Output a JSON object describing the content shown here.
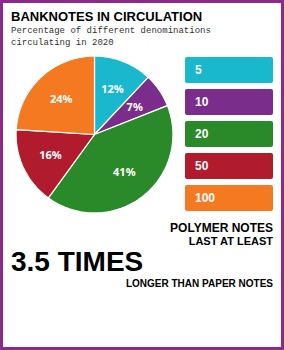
{
  "chart_data": {
    "type": "pie",
    "title": "BANKNOTES IN CIRCULATION",
    "subtitle": "Percentage of different denominations\ncirculating in 2020",
    "categories": [
      "5",
      "10",
      "20",
      "50",
      "100"
    ],
    "values": [
      12,
      7,
      41,
      16,
      24
    ],
    "value_labels": [
      "12%",
      "7%",
      "41%",
      "16%",
      "24%"
    ],
    "colors": [
      "#1ab8cc",
      "#7b2d8b",
      "#2a8a2a",
      "#b01c2e",
      "#f47920"
    ],
    "data_labels": true,
    "legend": "right",
    "annotations": [
      "POLYMER NOTES",
      "LAST AT LEAST",
      "3.5 TIMES",
      "LONGER THAN PAPER NOTES"
    ]
  }
}
